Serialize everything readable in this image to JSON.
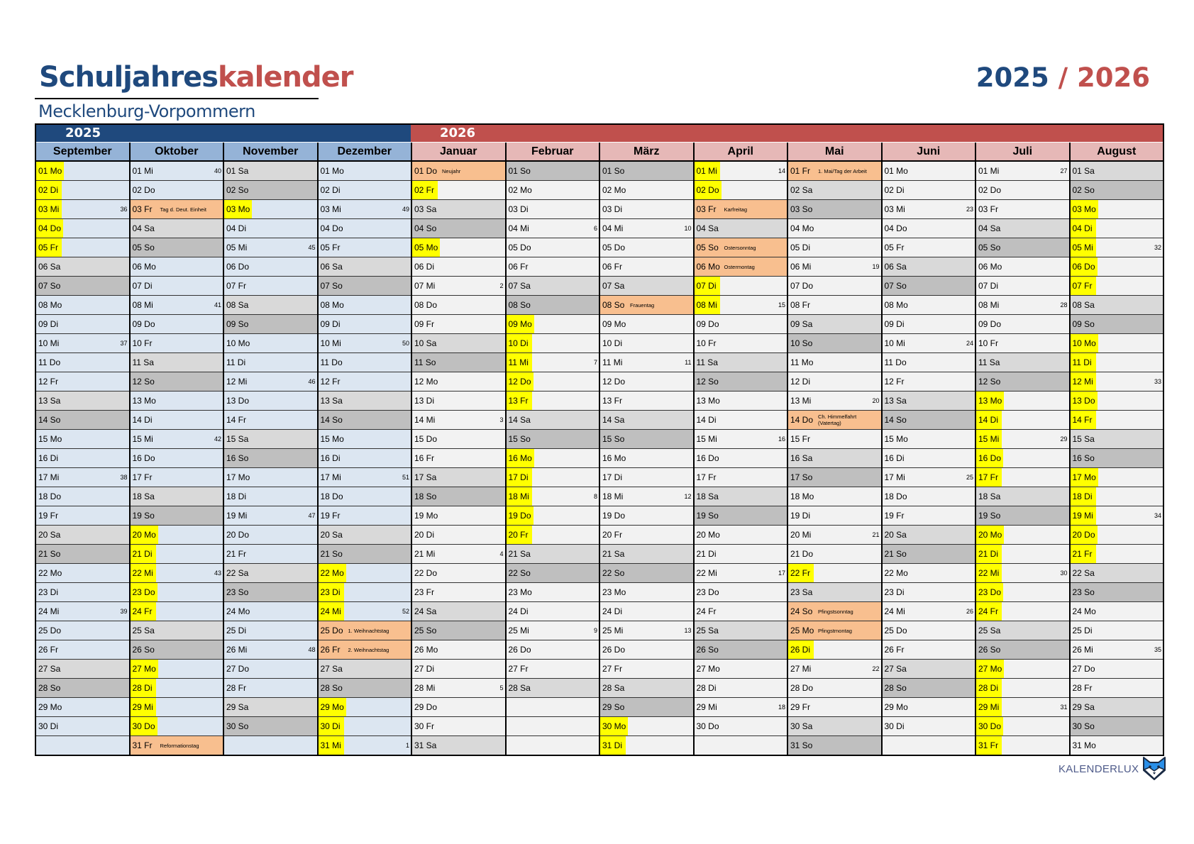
{
  "header": {
    "title_part1": "Schuljahres",
    "title_part2": "kalender",
    "subtitle": "Mecklenburg-Vorpommern",
    "year1": "2025",
    "separator": "/",
    "year2": "2026"
  },
  "colors": {
    "blue": "#1f497d",
    "red": "#c0504d",
    "ferien": "#ffff00",
    "feiertag": "#f8bf8f",
    "saturday": "#d9d9d9",
    "sunday": "#bfbfbf"
  },
  "year_groups": [
    {
      "label": "2025"
    },
    {
      "label": "2026"
    }
  ],
  "months": [
    {
      "name": "September",
      "year": "2025",
      "days": [
        "01 Mo",
        "02 Di",
        "03 Mi",
        "04 Do",
        "05 Fr",
        "06 Sa",
        "07 So",
        "08 Mo",
        "09 Di",
        "10 Mi",
        "11 Do",
        "12 Fr",
        "13 Sa",
        "14 So",
        "15 Mo",
        "16 Di",
        "17 Mi",
        "18 Do",
        "19 Fr",
        "20 Sa",
        "21 So",
        "22 Mo",
        "23 Di",
        "24 Mi",
        "25 Do",
        "26 Fr",
        "27 Sa",
        "28 So",
        "29 Mo",
        "30 Di"
      ],
      "kw": {
        "3": "36",
        "10": "37",
        "17": "38",
        "24": "39"
      },
      "ferien": [
        1,
        2,
        3,
        4,
        5
      ],
      "feiertage": {}
    },
    {
      "name": "Oktober",
      "year": "2025",
      "days": [
        "01 Mi",
        "02 Do",
        "03 Fr",
        "04 Sa",
        "05 So",
        "06 Mo",
        "07 Di",
        "08 Mi",
        "09 Do",
        "10 Fr",
        "11 Sa",
        "12 So",
        "13 Mo",
        "14 Di",
        "15 Mi",
        "16 Do",
        "17 Fr",
        "18 Sa",
        "19 So",
        "20 Mo",
        "21 Di",
        "22 Mi",
        "23 Do",
        "24 Fr",
        "25 Sa",
        "26 So",
        "27 Mo",
        "28 Di",
        "29 Mi",
        "30 Do",
        "31 Fr"
      ],
      "kw": {
        "1": "40",
        "8": "41",
        "15": "42",
        "22": "43"
      },
      "ferien": [
        20,
        21,
        22,
        23,
        24,
        27,
        28,
        29,
        30
      ],
      "feiertage": {
        "3": "Tag d. Deut. Einheit",
        "31": "Reformationstag"
      }
    },
    {
      "name": "November",
      "year": "2025",
      "days": [
        "01 Sa",
        "02 So",
        "03 Mo",
        "04 Di",
        "05 Mi",
        "06 Do",
        "07 Fr",
        "08 Sa",
        "09 So",
        "10 Mo",
        "11 Di",
        "12 Mi",
        "13 Do",
        "14 Fr",
        "15 Sa",
        "16 So",
        "17 Mo",
        "18 Di",
        "19 Mi",
        "20 Do",
        "21 Fr",
        "22 Sa",
        "23 So",
        "24 Mo",
        "25 Di",
        "26 Mi",
        "27 Do",
        "28 Fr",
        "29 Sa",
        "30 So"
      ],
      "kw": {
        "5": "45",
        "12": "46",
        "19": "47",
        "26": "48"
      },
      "ferien": [
        3
      ],
      "feiertage": {}
    },
    {
      "name": "Dezember",
      "year": "2025",
      "days": [
        "01 Mo",
        "02 Di",
        "03 Mi",
        "04 Do",
        "05 Fr",
        "06 Sa",
        "07 So",
        "08 Mo",
        "09 Di",
        "10 Mi",
        "11 Do",
        "12 Fr",
        "13 Sa",
        "14 So",
        "15 Mo",
        "16 Di",
        "17 Mi",
        "18 Do",
        "19 Fr",
        "20 Sa",
        "21 So",
        "22 Mo",
        "23 Di",
        "24 Mi",
        "25 Do",
        "26 Fr",
        "27 Sa",
        "28 So",
        "29 Mo",
        "30 Di",
        "31 Mi"
      ],
      "kw": {
        "3": "49",
        "10": "50",
        "17": "51",
        "24": "52",
        "31": "1"
      },
      "ferien": [
        22,
        23,
        24,
        29,
        30,
        31
      ],
      "feiertage": {
        "25": "1. Weihnachtstag",
        "26": "2. Weihnachtstag"
      }
    },
    {
      "name": "Januar",
      "year": "2026",
      "days": [
        "01 Do",
        "02 Fr",
        "03 Sa",
        "04 So",
        "05 Mo",
        "06 Di",
        "07 Mi",
        "08 Do",
        "09 Fr",
        "10 Sa",
        "11 So",
        "12 Mo",
        "13 Di",
        "14 Mi",
        "15 Do",
        "16 Fr",
        "17 Sa",
        "18 So",
        "19 Mo",
        "20 Di",
        "21 Mi",
        "22 Do",
        "23 Fr",
        "24 Sa",
        "25 So",
        "26 Mo",
        "27 Di",
        "28 Mi",
        "29 Do",
        "30 Fr",
        "31 Sa"
      ],
      "kw": {
        "7": "2",
        "14": "3",
        "21": "4",
        "28": "5"
      },
      "ferien": [
        2,
        5
      ],
      "feiertage": {
        "1": "Neujahr"
      }
    },
    {
      "name": "Februar",
      "year": "2026",
      "days": [
        "01 So",
        "02 Mo",
        "03 Di",
        "04 Mi",
        "05 Do",
        "06 Fr",
        "07 Sa",
        "08 So",
        "09 Mo",
        "10 Di",
        "11 Mi",
        "12 Do",
        "13 Fr",
        "14 Sa",
        "15 So",
        "16 Mo",
        "17 Di",
        "18 Mi",
        "19 Do",
        "20 Fr",
        "21 Sa",
        "22 So",
        "23 Mo",
        "24 Di",
        "25 Mi",
        "26 Do",
        "27 Fr",
        "28 Sa"
      ],
      "kw": {
        "4": "6",
        "11": "7",
        "18": "8",
        "25": "9"
      },
      "ferien": [
        9,
        10,
        11,
        12,
        13,
        16,
        17,
        18,
        19,
        20
      ],
      "feiertage": {}
    },
    {
      "name": "März",
      "year": "2026",
      "days": [
        "01 So",
        "02 Mo",
        "03 Di",
        "04 Mi",
        "05 Do",
        "06 Fr",
        "07 Sa",
        "08 So",
        "09 Mo",
        "10 Di",
        "11 Mi",
        "12 Do",
        "13 Fr",
        "14 Sa",
        "15 So",
        "16 Mo",
        "17 Di",
        "18 Mi",
        "19 Do",
        "20 Fr",
        "21 Sa",
        "22 So",
        "23 Mo",
        "24 Di",
        "25 Mi",
        "26 Do",
        "27 Fr",
        "28 Sa",
        "29 So",
        "30 Mo",
        "31 Di"
      ],
      "kw": {
        "4": "10",
        "11": "11",
        "18": "12",
        "25": "13"
      },
      "ferien": [
        30,
        31
      ],
      "feiertage": {
        "8": "Frauentag"
      }
    },
    {
      "name": "April",
      "year": "2026",
      "days": [
        "01 Mi",
        "02 Do",
        "03 Fr",
        "04 Sa",
        "05 So",
        "06 Mo",
        "07 Di",
        "08 Mi",
        "09 Do",
        "10 Fr",
        "11 Sa",
        "12 So",
        "13 Mo",
        "14 Di",
        "15 Mi",
        "16 Do",
        "17 Fr",
        "18 Sa",
        "19 So",
        "20 Mo",
        "21 Di",
        "22 Mi",
        "23 Do",
        "24 Fr",
        "25 Sa",
        "26 So",
        "27 Mo",
        "28 Di",
        "29 Mi",
        "30 Do"
      ],
      "kw": {
        "1": "14",
        "8": "15",
        "15": "16",
        "22": "17",
        "29": "18"
      },
      "ferien": [
        1,
        2,
        7,
        8
      ],
      "feiertage": {
        "3": "Karfreitag",
        "5": "Ostersonntag",
        "6": "Ostermontag"
      }
    },
    {
      "name": "Mai",
      "year": "2026",
      "days": [
        "01 Fr",
        "02 Sa",
        "03 So",
        "04 Mo",
        "05 Di",
        "06 Mi",
        "07 Do",
        "08 Fr",
        "09 Sa",
        "10 So",
        "11 Mo",
        "12 Di",
        "13 Mi",
        "14 Do",
        "15 Fr",
        "16 Sa",
        "17 So",
        "18 Mo",
        "19 Di",
        "20 Mi",
        "21 Do",
        "22 Fr",
        "23 Sa",
        "24 So",
        "25 Mo",
        "26 Di",
        "27 Mi",
        "28 Do",
        "29 Fr",
        "30 Sa",
        "31 So"
      ],
      "kw": {
        "6": "19",
        "13": "20",
        "20": "21",
        "27": "22"
      },
      "ferien": [
        22,
        26
      ],
      "feiertage": {
        "1": "1. Mai/Tag der Arbeit",
        "14": "Ch. Himmelfahrt (Vatertag)",
        "24": "Pfingstsonntag",
        "25": "Pfingstmontag"
      }
    },
    {
      "name": "Juni",
      "year": "2026",
      "days": [
        "01 Mo",
        "02 Di",
        "03 Mi",
        "04 Do",
        "05 Fr",
        "06 Sa",
        "07 So",
        "08 Mo",
        "09 Di",
        "10 Mi",
        "11 Do",
        "12 Fr",
        "13 Sa",
        "14 So",
        "15 Mo",
        "16 Di",
        "17 Mi",
        "18 Do",
        "19 Fr",
        "20 Sa",
        "21 So",
        "22 Mo",
        "23 Di",
        "24 Mi",
        "25 Do",
        "26 Fr",
        "27 Sa",
        "28 So",
        "29 Mo",
        "30 Di"
      ],
      "kw": {
        "3": "23",
        "10": "24",
        "17": "25",
        "24": "26"
      },
      "ferien": [],
      "feiertage": {}
    },
    {
      "name": "Juli",
      "year": "2026",
      "days": [
        "01 Mi",
        "02 Do",
        "03 Fr",
        "04 Sa",
        "05 So",
        "06 Mo",
        "07 Di",
        "08 Mi",
        "09 Do",
        "10 Fr",
        "11 Sa",
        "12 So",
        "13 Mo",
        "14 Di",
        "15 Mi",
        "16 Do",
        "17 Fr",
        "18 Sa",
        "19 So",
        "20 Mo",
        "21 Di",
        "22 Mi",
        "23 Do",
        "24 Fr",
        "25 Sa",
        "26 So",
        "27 Mo",
        "28 Di",
        "29 Mi",
        "30 Do",
        "31 Fr"
      ],
      "kw": {
        "1": "27",
        "8": "28",
        "15": "29",
        "22": "30",
        "29": "31"
      },
      "ferien": [
        13,
        14,
        15,
        16,
        17,
        20,
        21,
        22,
        23,
        24,
        27,
        28,
        29,
        30,
        31
      ],
      "feiertage": {}
    },
    {
      "name": "August",
      "year": "2026",
      "days": [
        "01 Sa",
        "02 So",
        "03 Mo",
        "04 Di",
        "05 Mi",
        "06 Do",
        "07 Fr",
        "08 Sa",
        "09 So",
        "10 Mo",
        "11 Di",
        "12 Mi",
        "13 Do",
        "14 Fr",
        "15 Sa",
        "16 So",
        "17 Mo",
        "18 Di",
        "19 Mi",
        "20 Do",
        "21 Fr",
        "22 Sa",
        "23 So",
        "24 Mo",
        "25 Di",
        "26 Mi",
        "27 Do",
        "28 Fr",
        "29 Sa",
        "30 So",
        "31 Mo"
      ],
      "kw": {
        "5": "32",
        "12": "33",
        "19": "34",
        "26": "35"
      },
      "ferien": [
        3,
        4,
        5,
        6,
        7,
        10,
        11,
        12,
        13,
        14,
        17,
        18,
        19,
        20,
        21
      ],
      "feiertage": {}
    }
  ],
  "footer": {
    "brand": "KALENDERLUX",
    "logo_icon": "fox-icon"
  }
}
